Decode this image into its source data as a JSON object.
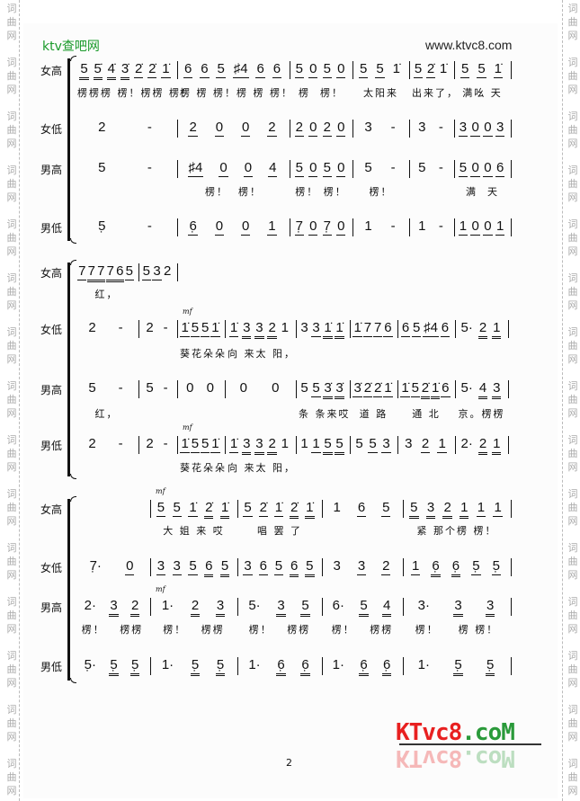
{
  "header": {
    "brand": "ktv查吧网",
    "url": "www.ktvc8.com"
  },
  "watermark": "词曲网",
  "page_number": "2",
  "logo": {
    "text": "KTvc8.coM",
    "colors": {
      "ktvc8": "#e82020",
      "com": "#2a9a3a"
    }
  },
  "systems": [
    {
      "parts": [
        {
          "name": "女高",
          "measures": [
            "5= 5̇= 4̇= 3̇= 2̇_ 2̇_ 1̇_",
            "6_ 6_ 5_ ♯4_ 6_ 6_",
            "5_ 0_ 5_ 0_",
            "5_ 5_ 1̇",
            "5_ 2̇_ 1̇",
            "5_ 5_ 1̇_"
          ],
          "lyrics": [
            "楞楞楞 楞！楞楞 楞！",
            "楞 楞 楞！楞 楞 楞！",
            "楞  楞！",
            "太阳来",
            "出来了，",
            "满吆 天"
          ]
        },
        {
          "name": "女低",
          "measures": [
            "2 -",
            "2_ 0_ 0_ 2_",
            "2_ 0_ 2_ 0_",
            "3 -",
            "3 -",
            "3_ 0_ 0_ 3_"
          ],
          "lyrics": []
        },
        {
          "name": "男高",
          "measures": [
            "5 -",
            "♯4_ 0_ 0_ 4_",
            "5_ 0_ 5_ 0_",
            "5 -",
            "5 -",
            "5_ 0_ 0_ 6_"
          ],
          "lyrics": [
            "",
            "楞！  楞！",
            "楞！ 楞！",
            "楞！",
            "",
            "满  天"
          ]
        },
        {
          "name": "男低",
          "measures": [
            "5̣ -",
            "6̣_ 0_ 0_ 1_",
            "7̣_ 0_ 7̣_ 0_",
            "1 -",
            "1 -",
            "1_ 0_ 0_ 1_"
          ],
          "lyrics": []
        }
      ]
    },
    {
      "parts": [
        {
          "name": "女高",
          "measures": [
            "7_ 7= 7= 7= 6= 5_",
            "5_ 3_ 2"
          ],
          "lyrics": [
            "红，",
            ""
          ]
        },
        {
          "name": "女低",
          "dynamic": "mf",
          "measures": [
            "2 -",
            "2 -",
            "1̇_ 5_ 5_ 1̇_",
            "1̇_ 3= 3= 2= 1",
            "3 3_ 1̇= 1̇=",
            "1̇_ 7_ 7_ 6_",
            "6_ 5_ ♯4_ 6_",
            "5· 2= 1="
          ],
          "lyrics": [
            "",
            "",
            "葵花朵朵",
            "向 来太 阳，"
          ]
        },
        {
          "name": "男高",
          "measures": [
            "5 -",
            "5 -",
            "0 0",
            "0 0",
            "5 5_ 3̇= 3̇=",
            "3̇_ 2̇_ 2̇_ 1̇_",
            "1̇_ 5_ 2̇= 1̇= 6_",
            "5· 4= 3="
          ],
          "lyrics": [
            "红，",
            "",
            "",
            "",
            "条 条来哎",
            "道 路",
            "通 北",
            "京。楞楞"
          ]
        },
        {
          "name": "男低",
          "dynamic": "mf",
          "measures": [
            "2 -",
            "2 -",
            "1̇_ 5_ 5_ 1̇_",
            "1̇_ 3= 3= 2= 1",
            "1 1_ 5= 5=",
            "5 5_ 3_",
            "3 2_ 1_",
            "2· 2= 1="
          ],
          "lyrics": [
            "",
            "",
            "葵花朵朵",
            "向 来太 阳，"
          ]
        }
      ]
    },
    {
      "parts": [
        {
          "name": "女高",
          "dynamic": "mf",
          "measures": [
            "",
            "5_ 5_ 1̇_ 2̇= 1̇=",
            "5_ 2̇_ 1̇_ 2̇= 1̇=",
            "1 6_ 5_",
            "5= 3= 2= 1= 1_ 1_"
          ],
          "lyrics": [
            "",
            "大 姐 来 哎",
            "唱 罢 了",
            "",
            "紧 那个楞 楞！"
          ]
        },
        {
          "name": "女低",
          "measures": [
            "7̣· 0_",
            "3_ 3_ 5_ 6= 5=",
            "3_ 6_ 5_ 6= 5=",
            "3 3_ 2_",
            "1_ 6̣= 6̣= 5̣_ 5̣_"
          ],
          "lyrics": []
        },
        {
          "name": "男高",
          "dynamic": "mf",
          "measures": [
            "2· 3= 2=",
            "1· 2= 3=",
            "5· 3= 5=",
            "6· 5= 4=",
            "3· 3= 3="
          ],
          "lyrics": [
            "楞！   楞楞",
            "楞！   楞楞",
            "楞！   楞楞",
            "楞！   楞楞",
            "楞！    楞 楞！"
          ]
        },
        {
          "name": "男低",
          "measures": [
            "5̣· 5̣= 5̣=",
            "1· 5̣= 5̣=",
            "1· 6̣= 6̣=",
            "1· 6̣= 6̣=",
            "1· 5̣= 5̣="
          ],
          "lyrics": []
        }
      ]
    }
  ]
}
